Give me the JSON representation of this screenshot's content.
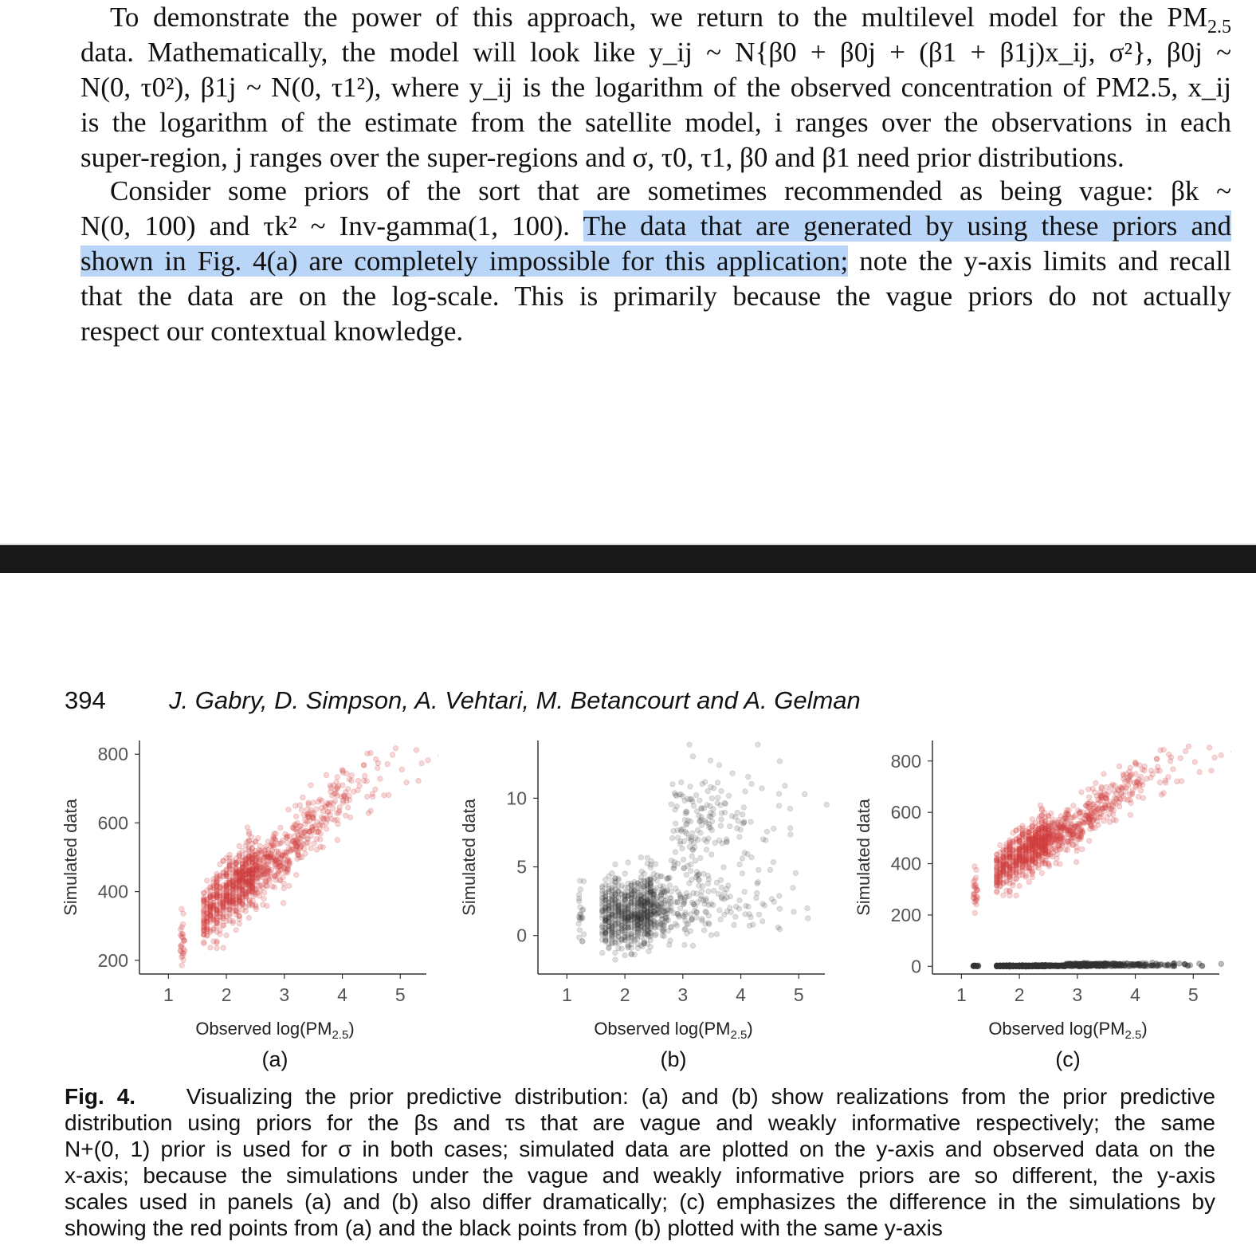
{
  "top_page": {
    "paragraph1": {
      "lines": [
        [
          "To demonstrate the power of this approach, we return to the multilevel model for the PM",
          "2.5"
        ],
        "data. Mathematically, the model will look like y_ij ~ N{β0 + β0j + (β1 + β1j)x_ij, σ²},  β0j ~",
        "N(0, τ0²), β1j ~ N(0, τ1²), where y_ij is the logarithm of the observed concentration of PM2.5, x_ij",
        "is the logarithm of the estimate from the satellite model, i ranges over the observations in each",
        "super-region, j ranges over the super-regions and σ, τ0, τ1, β0 and β1 need prior distributions."
      ]
    },
    "paragraph2": {
      "line1": "Consider some priors of the sort that are sometimes recommended as being vague: βk ~",
      "line2_pre": "N(0, 100) and τk² ~ Inv-gamma(1, 100).",
      "line2_hl": "The data that are generated by using these priors and",
      "line3_hl": "shown in Fig. 4(a) are completely impossible for this application;",
      "line3_post": "note the y-axis limits and recall",
      "line4": "that the data are on the log-scale. This is primarily because the vague priors do not actually",
      "line5": "respect our contextual knowledge."
    }
  },
  "bottom_page": {
    "page_number": "394",
    "running_head": "J. Gabry, D. Simpson, A. Vehtari, M. Betancourt and A. Gelman",
    "caption": {
      "label": "Fig. 4.",
      "lines": [
        "Visualizing the prior predictive distribution: (a) and (b) show realizations from the prior predictive",
        "distribution using priors for the βs and τs that are vague and weakly informative respectively; the same",
        "N+(0, 1) prior is used for σ in both cases; simulated data are plotted on the y-axis and observed data on the",
        "x-axis; because the simulations under the vague and weakly informative priors are so different, the y-axis",
        "scales used in panels (a) and (b) also differ dramatically; (c) emphasizes the difference in the simulations by",
        "showing the red points from (a) and the black points from (b) plotted with the same y-axis"
      ]
    }
  },
  "colors": {
    "red_points": "#d04040",
    "black_points": "#333333",
    "highlight": "#b9d5f7"
  },
  "chart_data": [
    {
      "type": "scatter",
      "panel_label": "(a)",
      "xlabel": "Observed log(PM2.5)",
      "ylabel": "Simulated data",
      "xlim": [
        0.5,
        5.45
      ],
      "ylim": [
        160,
        840
      ],
      "xticks": [
        1,
        2,
        3,
        4,
        5
      ],
      "yticks": [
        200,
        400,
        600,
        800
      ],
      "point_color": "#d04040",
      "trend": {
        "x": [
          1.3,
          2.0,
          3.0,
          4.0,
          4.7
        ],
        "y": [
          260,
          400,
          510,
          680,
          760
        ]
      }
    },
    {
      "type": "scatter",
      "panel_label": "(b)",
      "xlabel": "Observed log(PM2.5)",
      "ylabel": "Simulated data",
      "xlim": [
        0.5,
        5.45
      ],
      "ylim": [
        -2.8,
        14.2
      ],
      "xticks": [
        1,
        2,
        3,
        4,
        5
      ],
      "yticks": [
        0,
        5,
        10
      ],
      "point_color": "#333333",
      "clusters": [
        {
          "x_center": 2.4,
          "y_center": 1.8,
          "note": "dense low cluster"
        },
        {
          "x_center": 3.6,
          "y_center": 8.5,
          "note": "upper cluster"
        }
      ]
    },
    {
      "type": "scatter",
      "panel_label": "(c)",
      "xlabel": "Observed log(PM2.5)",
      "ylabel": "Simulated data",
      "xlim": [
        0.5,
        5.45
      ],
      "ylim": [
        -30,
        880
      ],
      "xticks": [
        1,
        2,
        3,
        4,
        5
      ],
      "yticks": [
        0,
        200,
        400,
        600,
        800
      ],
      "series": [
        {
          "name": "",
          "color": "#d04040"
        },
        {
          "name": "",
          "color": "#333333"
        }
      ]
    }
  ]
}
